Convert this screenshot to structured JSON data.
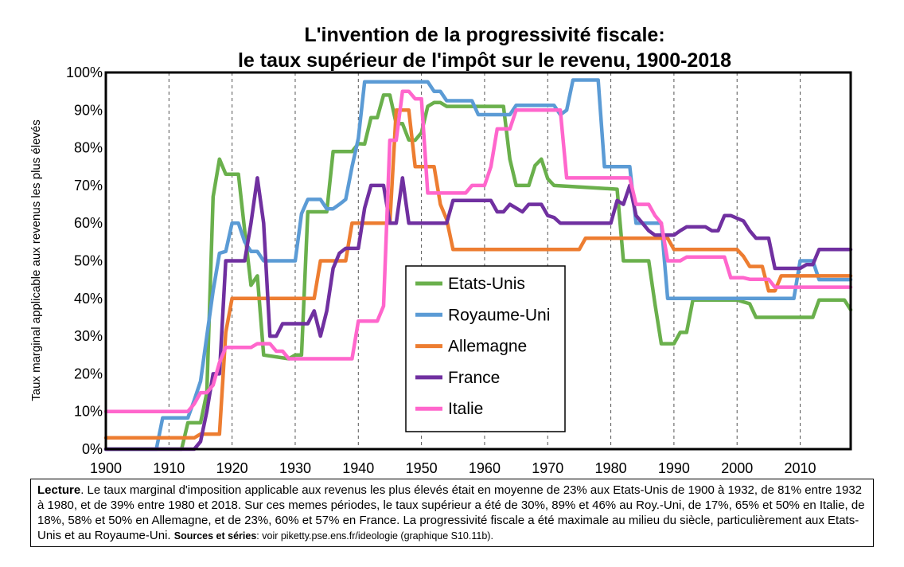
{
  "chart_data": {
    "type": "line",
    "title": "L'invention de la progressivité fiscale:",
    "subtitle": "le taux supérieur de l'impôt sur le revenu, 1900-2018",
    "xlabel": "",
    "ylabel": "Taux marginal applicable aux revenus les plus élevés",
    "xlim": [
      1900,
      2018
    ],
    "ylim": [
      0,
      1
    ],
    "x_ticks": [
      1900,
      1910,
      1920,
      1930,
      1940,
      1950,
      1960,
      1970,
      1980,
      1990,
      2000,
      2010
    ],
    "y_ticks": [
      0,
      0.1,
      0.2,
      0.3,
      0.4,
      0.5,
      0.6,
      0.7,
      0.8,
      0.9,
      1.0
    ],
    "y_tick_labels": [
      "0%",
      "10%",
      "20%",
      "30%",
      "40%",
      "50%",
      "60%",
      "70%",
      "80%",
      "90%",
      "100%"
    ],
    "grid": "vertical dashed",
    "legend": "center",
    "series": [
      {
        "name": "Etats-Unis",
        "color": "#6ab04c",
        "points": [
          [
            1900,
            0
          ],
          [
            1912,
            0
          ],
          [
            1913,
            0.07
          ],
          [
            1915,
            0.07
          ],
          [
            1916,
            0.15
          ],
          [
            1917,
            0.67
          ],
          [
            1918,
            0.77
          ],
          [
            1919,
            0.73
          ],
          [
            1921,
            0.73
          ],
          [
            1922,
            0.58
          ],
          [
            1923,
            0.435
          ],
          [
            1924,
            0.46
          ],
          [
            1925,
            0.25
          ],
          [
            1929,
            0.24
          ],
          [
            1930,
            0.25
          ],
          [
            1931,
            0.25
          ],
          [
            1932,
            0.63
          ],
          [
            1935,
            0.63
          ],
          [
            1936,
            0.79
          ],
          [
            1939,
            0.79
          ],
          [
            1940,
            0.811
          ],
          [
            1941,
            0.81
          ],
          [
            1942,
            0.88
          ],
          [
            1943,
            0.88
          ],
          [
            1944,
            0.94
          ],
          [
            1945,
            0.94
          ],
          [
            1946,
            0.864
          ],
          [
            1947,
            0.864
          ],
          [
            1948,
            0.821
          ],
          [
            1949,
            0.82
          ],
          [
            1950,
            0.84
          ],
          [
            1951,
            0.91
          ],
          [
            1952,
            0.92
          ],
          [
            1953,
            0.92
          ],
          [
            1954,
            0.91
          ],
          [
            1963,
            0.91
          ],
          [
            1964,
            0.77
          ],
          [
            1965,
            0.7
          ],
          [
            1967,
            0.7
          ],
          [
            1968,
            0.753
          ],
          [
            1969,
            0.77
          ],
          [
            1970,
            0.718
          ],
          [
            1971,
            0.7
          ],
          [
            1981,
            0.69
          ],
          [
            1982,
            0.5
          ],
          [
            1986,
            0.5
          ],
          [
            1987,
            0.385
          ],
          [
            1988,
            0.28
          ],
          [
            1990,
            0.28
          ],
          [
            1991,
            0.31
          ],
          [
            1992,
            0.31
          ],
          [
            1993,
            0.396
          ],
          [
            2000,
            0.396
          ],
          [
            2001,
            0.391
          ],
          [
            2002,
            0.386
          ],
          [
            2003,
            0.35
          ],
          [
            2012,
            0.35
          ],
          [
            2013,
            0.396
          ],
          [
            2017,
            0.396
          ],
          [
            2018,
            0.37
          ]
        ]
      },
      {
        "name": "Royaume-Uni",
        "color": "#5b9bd5",
        "points": [
          [
            1900,
            0
          ],
          [
            1908,
            0
          ],
          [
            1909,
            0.083
          ],
          [
            1913,
            0.083
          ],
          [
            1914,
            0.13
          ],
          [
            1915,
            0.18
          ],
          [
            1916,
            0.3
          ],
          [
            1917,
            0.42
          ],
          [
            1918,
            0.52
          ],
          [
            1919,
            0.525
          ],
          [
            1920,
            0.6
          ],
          [
            1921,
            0.6
          ],
          [
            1922,
            0.55
          ],
          [
            1923,
            0.525
          ],
          [
            1924,
            0.525
          ],
          [
            1925,
            0.5
          ],
          [
            1930,
            0.5
          ],
          [
            1931,
            0.625
          ],
          [
            1932,
            0.663
          ],
          [
            1934,
            0.663
          ],
          [
            1935,
            0.638
          ],
          [
            1936,
            0.638
          ],
          [
            1937,
            0.65
          ],
          [
            1938,
            0.663
          ],
          [
            1939,
            0.75
          ],
          [
            1940,
            0.825
          ],
          [
            1941,
            0.975
          ],
          [
            1951,
            0.975
          ],
          [
            1952,
            0.95
          ],
          [
            1953,
            0.95
          ],
          [
            1954,
            0.925
          ],
          [
            1958,
            0.925
          ],
          [
            1959,
            0.888
          ],
          [
            1964,
            0.888
          ],
          [
            1965,
            0.913
          ],
          [
            1971,
            0.913
          ],
          [
            1972,
            0.888
          ],
          [
            1973,
            0.9
          ],
          [
            1974,
            0.98
          ],
          [
            1978,
            0.98
          ],
          [
            1979,
            0.75
          ],
          [
            1983,
            0.75
          ],
          [
            1984,
            0.6
          ],
          [
            1988,
            0.6
          ],
          [
            1989,
            0.4
          ],
          [
            2009,
            0.4
          ],
          [
            2010,
            0.5
          ],
          [
            2012,
            0.5
          ],
          [
            2013,
            0.45
          ],
          [
            2018,
            0.45
          ]
        ]
      },
      {
        "name": "Allemagne",
        "color": "#ed7d31",
        "points": [
          [
            1900,
            0.03
          ],
          [
            1914,
            0.03
          ],
          [
            1915,
            0.04
          ],
          [
            1918,
            0.04
          ],
          [
            1919,
            0.31
          ],
          [
            1920,
            0.4
          ],
          [
            1933,
            0.4
          ],
          [
            1934,
            0.5
          ],
          [
            1938,
            0.5
          ],
          [
            1939,
            0.6
          ],
          [
            1945,
            0.6
          ],
          [
            1946,
            0.9
          ],
          [
            1948,
            0.9
          ],
          [
            1949,
            0.75
          ],
          [
            1952,
            0.75
          ],
          [
            1953,
            0.65
          ],
          [
            1954,
            0.61
          ],
          [
            1955,
            0.53
          ],
          [
            1975,
            0.53
          ],
          [
            1976,
            0.56
          ],
          [
            1989,
            0.56
          ],
          [
            1990,
            0.53
          ],
          [
            2000,
            0.53
          ],
          [
            2001,
            0.512
          ],
          [
            2002,
            0.485
          ],
          [
            2004,
            0.485
          ],
          [
            2005,
            0.42
          ],
          [
            2006,
            0.42
          ],
          [
            2007,
            0.46
          ],
          [
            2018,
            0.46
          ]
        ]
      },
      {
        "name": "France",
        "color": "#7030a0",
        "points": [
          [
            1900,
            0
          ],
          [
            1914,
            0
          ],
          [
            1915,
            0.02
          ],
          [
            1916,
            0.1
          ],
          [
            1917,
            0.2
          ],
          [
            1918,
            0.2
          ],
          [
            1919,
            0.5
          ],
          [
            1922,
            0.5
          ],
          [
            1923,
            0.6
          ],
          [
            1924,
            0.72
          ],
          [
            1925,
            0.6
          ],
          [
            1926,
            0.3
          ],
          [
            1927,
            0.3
          ],
          [
            1928,
            0.333
          ],
          [
            1932,
            0.333
          ],
          [
            1933,
            0.367
          ],
          [
            1934,
            0.3
          ],
          [
            1935,
            0.367
          ],
          [
            1936,
            0.48
          ],
          [
            1937,
            0.52
          ],
          [
            1938,
            0.533
          ],
          [
            1940,
            0.533
          ],
          [
            1941,
            0.64
          ],
          [
            1942,
            0.7
          ],
          [
            1944,
            0.7
          ],
          [
            1945,
            0.6
          ],
          [
            1946,
            0.6
          ],
          [
            1947,
            0.72
          ],
          [
            1948,
            0.6
          ],
          [
            1954,
            0.6
          ],
          [
            1955,
            0.66
          ],
          [
            1961,
            0.66
          ],
          [
            1962,
            0.63
          ],
          [
            1963,
            0.63
          ],
          [
            1964,
            0.65
          ],
          [
            1966,
            0.63
          ],
          [
            1967,
            0.65
          ],
          [
            1969,
            0.65
          ],
          [
            1970,
            0.62
          ],
          [
            1971,
            0.615
          ],
          [
            1972,
            0.6
          ],
          [
            1980,
            0.6
          ],
          [
            1981,
            0.66
          ],
          [
            1982,
            0.65
          ],
          [
            1983,
            0.7
          ],
          [
            1984,
            0.62
          ],
          [
            1986,
            0.58
          ],
          [
            1987,
            0.568
          ],
          [
            1990,
            0.568
          ],
          [
            1991,
            0.58
          ],
          [
            1992,
            0.59
          ],
          [
            1995,
            0.59
          ],
          [
            1996,
            0.58
          ],
          [
            1997,
            0.58
          ],
          [
            1998,
            0.62
          ],
          [
            1999,
            0.62
          ],
          [
            2001,
            0.606
          ],
          [
            2002,
            0.58
          ],
          [
            2003,
            0.56
          ],
          [
            2005,
            0.56
          ],
          [
            2006,
            0.48
          ],
          [
            2010,
            0.48
          ],
          [
            2011,
            0.49
          ],
          [
            2012,
            0.49
          ],
          [
            2013,
            0.53
          ],
          [
            2018,
            0.53
          ]
        ]
      },
      {
        "name": "Italie",
        "color": "#ff66cc",
        "points": [
          [
            1900,
            0.1
          ],
          [
            1913,
            0.1
          ],
          [
            1914,
            0.12
          ],
          [
            1915,
            0.15
          ],
          [
            1916,
            0.15
          ],
          [
            1917,
            0.17
          ],
          [
            1918,
            0.23
          ],
          [
            1919,
            0.27
          ],
          [
            1923,
            0.27
          ],
          [
            1924,
            0.28
          ],
          [
            1926,
            0.28
          ],
          [
            1927,
            0.26
          ],
          [
            1928,
            0.26
          ],
          [
            1929,
            0.24
          ],
          [
            1939,
            0.24
          ],
          [
            1940,
            0.34
          ],
          [
            1943,
            0.34
          ],
          [
            1944,
            0.38
          ],
          [
            1945,
            0.82
          ],
          [
            1946,
            0.82
          ],
          [
            1947,
            0.95
          ],
          [
            1948,
            0.95
          ],
          [
            1949,
            0.93
          ],
          [
            1950,
            0.93
          ],
          [
            1951,
            0.68
          ],
          [
            1957,
            0.68
          ],
          [
            1958,
            0.7
          ],
          [
            1960,
            0.7
          ],
          [
            1961,
            0.75
          ],
          [
            1962,
            0.85
          ],
          [
            1964,
            0.85
          ],
          [
            1965,
            0.9
          ],
          [
            1972,
            0.9
          ],
          [
            1973,
            0.72
          ],
          [
            1983,
            0.72
          ],
          [
            1984,
            0.65
          ],
          [
            1986,
            0.65
          ],
          [
            1987,
            0.62
          ],
          [
            1988,
            0.6
          ],
          [
            1989,
            0.5
          ],
          [
            1991,
            0.5
          ],
          [
            1992,
            0.51
          ],
          [
            1998,
            0.51
          ],
          [
            1999,
            0.455
          ],
          [
            2001,
            0.455
          ],
          [
            2002,
            0.451
          ],
          [
            2005,
            0.451
          ],
          [
            2006,
            0.43
          ],
          [
            2018,
            0.43
          ]
        ]
      }
    ]
  },
  "note": {
    "label": "Lecture",
    "text": ". Le taux marginal d'imposition applicable aux revenus les plus élevés était en moyenne de 23% aux Etats-Unis de 1900 à 1932, de 81% entre 1932 à 1980, et de 39% entre 1980 et 2018. Sur ces memes périodes, le taux supérieur a été de 30%, 89% et 46% au Roy.-Uni, de 17%, 65% et 50% en Italie, de 18%, 58% et 50% en Allemagne, et de 23%, 60% et 57% en France. La progressivité fiscale a été maximale au milieu du siècle, particulièrement aux Etats-Unis et au Royaume-Uni. ",
    "sources_label": "Sources et séries",
    "sources_text": ": voir piketty.pse.ens.fr/ideologie (graphique S10.11b)."
  }
}
